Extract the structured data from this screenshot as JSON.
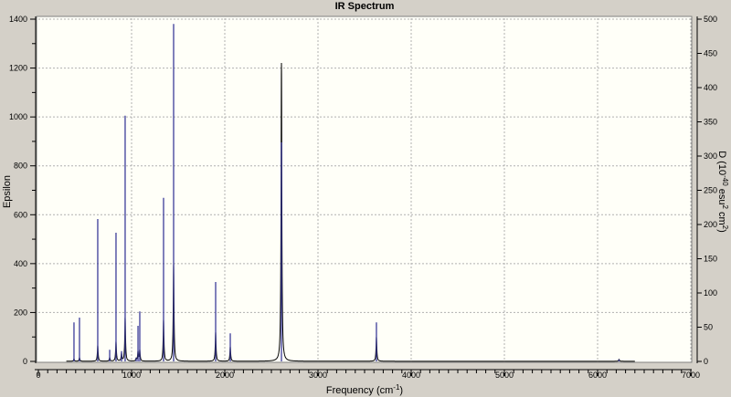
{
  "chart_data": {
    "type": "line",
    "title": "IR Spectrum",
    "xlabel": "Frequency (cm",
    "xlabel_sup": "-1",
    "xlabel_end": ")",
    "ylabel": "Epsilon",
    "y2label": "D (10",
    "y2label_sup1": "-40",
    "y2label_mid": " esu",
    "y2label_sup2": "2",
    "y2label_mid2": " cm",
    "y2label_sup3": "2",
    "y2label_end": ")",
    "xlim": [
      0,
      7000
    ],
    "ylim": [
      0,
      1400
    ],
    "y2lim": [
      0,
      500
    ],
    "xticks": [
      0,
      1000,
      2000,
      3000,
      4000,
      5000,
      6000,
      7000
    ],
    "yticks": [
      0,
      200,
      400,
      600,
      800,
      1000,
      1200,
      1400
    ],
    "y2ticks": [
      0,
      50,
      100,
      150,
      200,
      250,
      300,
      350,
      400,
      450,
      500
    ],
    "grid": true,
    "colors": {
      "background": "#d4d0c8",
      "plot": "#fffff8",
      "sticks": "#3c3c9a",
      "curve": "#000000",
      "grid": "#b0b0b0"
    },
    "sticks_series": {
      "axis": "right",
      "frequency": [
        382,
        441,
        637,
        765,
        833,
        892,
        931,
        1049,
        1069,
        1088,
        1343,
        1451,
        1902,
        2059,
        2608,
        3627,
        6230
      ],
      "D": [
        57,
        64,
        208,
        17,
        188,
        15,
        359,
        5,
        52,
        73,
        239,
        493,
        116,
        41,
        320,
        57,
        3
      ]
    },
    "epsilon_series": {
      "axis": "left",
      "frequency": [
        382,
        441,
        637,
        765,
        833,
        892,
        931,
        1049,
        1069,
        1088,
        1343,
        1451,
        1902,
        2059,
        2608,
        3627,
        6230
      ],
      "epsilon_peak": [
        10,
        15,
        65,
        15,
        80,
        30,
        180,
        10,
        40,
        45,
        170,
        400,
        120,
        60,
        1220,
        100,
        8
      ]
    }
  }
}
